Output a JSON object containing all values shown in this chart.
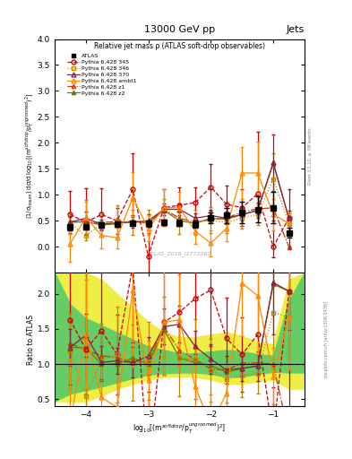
{
  "title": "13000 GeV pp",
  "right_title": "Jets",
  "plot_title": "Relative jet mass ρ (ATLAS soft-drop observables)",
  "watermark": "ATLAS_2019_I1772062",
  "ylabel_main": "(1/σ$_{resum}$) dσ/d log$_{10}$[(m$^{soft drop}$/p$_T^{ungroomed}$)$^2$]",
  "ylabel_ratio": "Ratio to ATLAS",
  "xlabel": "log$_{10}$[(m$^{soft drop}$/p$_T^{ungroomed}$)$^2$]",
  "right_label": "Rivet 3.1.10, ≥ 3M events",
  "right_label2": "mcplots.cern.ch [arXiv:1306.3436]",
  "xlim": [
    -4.5,
    -0.5
  ],
  "ylim_main": [
    -0.5,
    4.0
  ],
  "ylim_ratio": [
    0.4,
    2.3
  ],
  "x_atlas": [
    -4.25,
    -4.0,
    -3.75,
    -3.5,
    -3.25,
    -3.0,
    -2.75,
    -2.5,
    -2.25,
    -2.0,
    -1.75,
    -1.5,
    -1.25,
    -1.0,
    -0.75
  ],
  "y_atlas": [
    0.38,
    0.39,
    0.42,
    0.44,
    0.46,
    0.45,
    0.47,
    0.46,
    0.44,
    0.56,
    0.6,
    0.66,
    0.72,
    0.75,
    0.27
  ],
  "yerr_atlas": [
    0.06,
    0.05,
    0.05,
    0.05,
    0.05,
    0.06,
    0.06,
    0.06,
    0.07,
    0.1,
    0.15,
    0.2,
    0.25,
    0.3,
    0.1
  ],
  "x_py345": [
    -4.25,
    -4.0,
    -3.75,
    -3.5,
    -3.25,
    -3.0,
    -2.75,
    -2.5,
    -2.25,
    -2.0,
    -1.75,
    -1.5,
    -1.25,
    -1.0,
    -0.75
  ],
  "y_py345": [
    0.62,
    0.47,
    0.62,
    0.5,
    1.1,
    -0.18,
    0.75,
    0.8,
    0.85,
    1.15,
    0.82,
    0.75,
    1.02,
    0.0,
    0.55
  ],
  "yerr_py345_lo": [
    0.35,
    0.25,
    0.3,
    0.25,
    0.5,
    0.4,
    0.35,
    0.35,
    0.35,
    0.45,
    0.35,
    0.35,
    0.4,
    0.2,
    0.6
  ],
  "yerr_py345_hi": [
    0.45,
    0.65,
    0.5,
    0.25,
    0.7,
    0.45,
    0.35,
    0.35,
    0.3,
    0.45,
    0.35,
    0.35,
    1.2,
    0.5,
    0.55
  ],
  "x_py346": [
    -4.25,
    -4.0,
    -3.75,
    -3.5,
    -3.25,
    -3.0,
    -2.75,
    -2.5,
    -2.25,
    -2.0,
    -1.75,
    -1.5,
    -1.25,
    -1.0,
    -0.75
  ],
  "y_py346": [
    0.45,
    0.21,
    0.44,
    0.5,
    0.47,
    0.47,
    0.72,
    0.5,
    0.47,
    0.51,
    0.47,
    0.55,
    0.62,
    1.3,
    0.45
  ],
  "yerr_py346_lo": [
    0.2,
    0.08,
    0.22,
    0.3,
    0.25,
    0.25,
    0.2,
    0.25,
    0.25,
    0.25,
    0.2,
    0.2,
    0.2,
    0.5,
    0.2
  ],
  "yerr_py346_hi": [
    0.2,
    0.7,
    0.22,
    0.3,
    0.25,
    0.25,
    0.2,
    0.25,
    0.25,
    0.25,
    0.2,
    0.2,
    0.2,
    0.5,
    0.2
  ],
  "x_py370": [
    -4.25,
    -4.0,
    -3.75,
    -3.5,
    -3.25,
    -3.0,
    -2.75,
    -2.5,
    -2.25,
    -2.0,
    -1.75,
    -1.5,
    -1.25,
    -1.0,
    -0.75
  ],
  "y_py370": [
    0.47,
    0.55,
    0.43,
    0.46,
    0.47,
    0.5,
    0.72,
    0.72,
    0.55,
    0.6,
    0.55,
    0.62,
    0.7,
    1.62,
    0.55
  ],
  "yerr_py370_lo": [
    0.1,
    0.12,
    0.1,
    0.08,
    0.1,
    0.12,
    0.12,
    0.12,
    0.1,
    0.12,
    0.12,
    0.12,
    0.15,
    0.55,
    0.15
  ],
  "yerr_py370_hi": [
    0.1,
    0.12,
    0.1,
    0.08,
    0.1,
    0.12,
    0.12,
    0.12,
    0.1,
    0.12,
    0.12,
    0.12,
    0.15,
    0.55,
    0.15
  ],
  "x_pyambt1": [
    -4.25,
    -4.0,
    -3.75,
    -3.5,
    -3.25,
    -3.0,
    -2.75,
    -2.5,
    -2.25,
    -2.0,
    -1.75,
    -1.5,
    -1.25,
    -1.0,
    -0.75
  ],
  "y_pyambt1": [
    0.06,
    0.56,
    0.22,
    0.17,
    0.94,
    0.35,
    0.75,
    0.75,
    0.3,
    0.07,
    0.35,
    1.42,
    1.42,
    0.62,
    0.45
  ],
  "yerr_pyambt1_lo": [
    0.35,
    0.3,
    0.25,
    0.2,
    0.5,
    0.25,
    0.35,
    0.3,
    0.25,
    0.25,
    0.25,
    0.5,
    0.6,
    0.3,
    0.2
  ],
  "yerr_pyambt1_hi": [
    0.35,
    0.3,
    0.25,
    0.2,
    0.5,
    0.25,
    0.35,
    0.3,
    0.25,
    0.25,
    0.25,
    0.5,
    0.6,
    0.3,
    0.2
  ],
  "x_pyz1": [
    -4.25,
    -4.0,
    -3.75,
    -3.5,
    -3.25,
    -3.0,
    -2.75,
    -2.5,
    -2.25,
    -2.0,
    -1.75,
    -1.5,
    -1.25,
    -1.0,
    -0.75
  ],
  "y_pyz1": [
    0.49,
    0.47,
    0.47,
    0.48,
    0.47,
    0.47,
    0.72,
    0.55,
    0.47,
    0.52,
    0.55,
    0.67,
    0.73,
    0.75,
    0.0
  ],
  "x_pyz2": [
    -4.25,
    -4.0,
    -3.75,
    -3.5,
    -3.25,
    -3.0,
    -2.75,
    -2.5,
    -2.25,
    -2.0,
    -1.75,
    -1.5,
    -1.25,
    -1.0,
    -0.75
  ],
  "y_pyz2": [
    0.47,
    0.48,
    0.42,
    0.44,
    0.5,
    0.45,
    0.7,
    0.5,
    0.45,
    0.55,
    0.53,
    0.62,
    0.7,
    1.6,
    0.55
  ],
  "color_atlas": "#000000",
  "color_py345": "#cc0000",
  "color_py346": "#bb8800",
  "color_py370": "#882244",
  "color_pyambt1": "#ff8800",
  "color_pyz1": "#cc3300",
  "color_pyz2": "#777700",
  "bg_green": "#66cc66",
  "bg_yellow": "#eeee44",
  "xticks": [
    -4,
    -3,
    -2,
    -1
  ],
  "yticks_main": [
    0.0,
    0.5,
    1.0,
    1.5,
    2.0,
    2.5,
    3.0,
    3.5,
    4.0
  ],
  "yticks_ratio": [
    0.5,
    1.0,
    1.5,
    2.0
  ],
  "band_x": [
    -4.5,
    -4.25,
    -4.0,
    -3.75,
    -3.5,
    -3.25,
    -3.0,
    -2.75,
    -2.5,
    -2.25,
    -2.0,
    -1.75,
    -1.5,
    -1.25,
    -1.0,
    -0.75,
    -0.5
  ],
  "yellow_lo": [
    0.47,
    0.47,
    0.47,
    0.55,
    0.65,
    0.72,
    0.78,
    0.82,
    0.82,
    0.82,
    0.78,
    0.72,
    0.72,
    0.75,
    0.78,
    0.65,
    0.65
  ],
  "yellow_hi": [
    2.3,
    2.3,
    2.3,
    2.2,
    2.0,
    1.8,
    1.6,
    1.45,
    1.38,
    1.38,
    1.42,
    1.45,
    1.4,
    1.32,
    1.28,
    2.2,
    2.3
  ],
  "green_lo": [
    0.47,
    0.58,
    0.63,
    0.68,
    0.74,
    0.8,
    0.85,
    0.87,
    0.88,
    0.88,
    0.86,
    0.82,
    0.82,
    0.86,
    0.89,
    0.88,
    0.88
  ],
  "green_hi": [
    2.3,
    1.85,
    1.65,
    1.55,
    1.45,
    1.35,
    1.25,
    1.2,
    1.15,
    1.15,
    1.18,
    1.2,
    1.18,
    1.14,
    1.12,
    1.9,
    2.3
  ]
}
